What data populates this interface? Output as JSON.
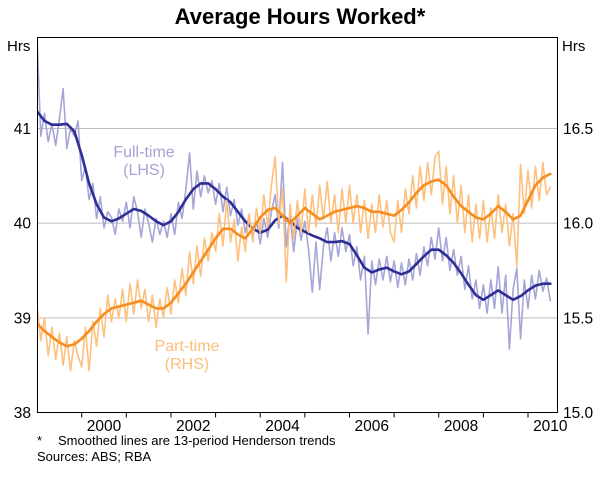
{
  "chart_data": {
    "type": "line",
    "title": "Average Hours Worked*",
    "grid": true,
    "left_axis": {
      "unit": "Hrs",
      "tick_labels": [
        "38",
        "39",
        "40",
        "41"
      ],
      "tick_values": [
        38,
        39,
        40,
        41
      ],
      "range": [
        38,
        41.96
      ]
    },
    "right_axis": {
      "unit": "Hrs",
      "tick_labels": [
        "15.0",
        "15.5",
        "16.0",
        "16.5"
      ],
      "tick_values": [
        15.0,
        15.5,
        16.0,
        16.5
      ],
      "range": [
        15.0,
        16.98
      ]
    },
    "x_axis": {
      "range": [
        1999.0,
        2010.65
      ],
      "tick_years": [
        2000,
        2001,
        2002,
        2003,
        2004,
        2005,
        2006,
        2007,
        2008,
        2009,
        2010
      ],
      "label_years": [
        2000,
        2002,
        2004,
        2006,
        2008,
        2010
      ],
      "labels": [
        "2000",
        "2002",
        "2004",
        "2006",
        "2008",
        "2010"
      ]
    },
    "series_labels": {
      "full_time": {
        "line1": "Full-time",
        "line2": "(LHS)",
        "color": "#a3a3d6"
      },
      "part_time": {
        "line1": "Part-time",
        "line2": "(RHS)",
        "color": "#fdbe7b"
      }
    },
    "series": [
      {
        "name": "full-time-monthly",
        "axis": "left",
        "color": "#a5a5d9",
        "width": 1.6,
        "x_start": 1999.0,
        "x_step": 0.083333,
        "y": [
          41.95,
          40.92,
          41.16,
          40.86,
          41.05,
          40.82,
          41.1,
          41.42,
          40.79,
          41.0,
          40.92,
          41.08,
          40.45,
          40.6,
          40.25,
          40.42,
          40.05,
          40.28,
          39.95,
          40.12,
          40.06,
          39.88,
          40.15,
          40.02,
          40.22,
          39.95,
          40.28,
          40.12,
          39.85,
          40.15,
          40.0,
          39.8,
          40.05,
          39.88,
          40.02,
          39.85,
          40.1,
          39.88,
          40.22,
          40.05,
          40.35,
          40.74,
          40.15,
          40.55,
          40.28,
          40.5,
          40.32,
          40.45,
          40.2,
          40.42,
          40.12,
          40.38,
          40.08,
          40.25,
          39.98,
          40.15,
          39.9,
          40.08,
          39.85,
          40.02,
          39.78,
          40.05,
          39.85,
          40.12,
          40.3,
          39.95,
          40.64,
          39.75,
          40.1,
          39.7,
          40.05,
          39.82,
          40.02,
          39.72,
          39.27,
          39.8,
          39.3,
          39.75,
          39.95,
          39.6,
          39.9,
          39.65,
          39.95,
          39.7,
          39.88,
          39.55,
          39.75,
          39.4,
          39.65,
          38.83,
          39.6,
          39.35,
          39.62,
          39.4,
          39.65,
          39.38,
          39.6,
          39.32,
          39.58,
          39.35,
          39.62,
          39.4,
          39.68,
          39.45,
          39.75,
          39.55,
          39.85,
          39.62,
          39.95,
          39.6,
          39.85,
          39.5,
          39.72,
          39.45,
          39.65,
          39.3,
          39.55,
          39.2,
          39.4,
          39.1,
          39.35,
          39.05,
          39.4,
          39.1,
          39.54,
          39.05,
          39.45,
          38.67,
          39.3,
          39.52,
          38.78,
          39.4,
          39.1,
          39.45,
          39.2,
          39.5,
          39.28,
          39.42,
          39.18
        ]
      },
      {
        "name": "full-time-trend",
        "axis": "left",
        "color": "#2d2f94",
        "width": 2.6,
        "x_start": 1999.0,
        "x_step": 0.166667,
        "y": [
          41.18,
          41.08,
          41.04,
          41.04,
          41.05,
          40.97,
          40.72,
          40.42,
          40.2,
          40.06,
          40.02,
          40.05,
          40.1,
          40.15,
          40.13,
          40.08,
          40.02,
          39.98,
          40.02,
          40.12,
          40.25,
          40.36,
          40.42,
          40.42,
          40.36,
          40.28,
          40.22,
          40.12,
          40.02,
          39.94,
          39.9,
          39.93,
          40.03,
          40.08,
          40.02,
          39.95,
          39.91,
          39.87,
          39.84,
          39.8,
          39.8,
          39.81,
          39.78,
          39.66,
          39.53,
          39.48,
          39.51,
          39.53,
          39.49,
          39.46,
          39.49,
          39.57,
          39.65,
          39.72,
          39.72,
          39.66,
          39.58,
          39.47,
          39.35,
          39.24,
          39.19,
          39.24,
          39.29,
          39.24,
          39.19,
          39.23,
          39.29,
          39.34,
          39.36,
          39.36
        ]
      },
      {
        "name": "part-time-monthly",
        "axis": "right",
        "color": "#fdc07e",
        "width": 1.6,
        "x_start": 1999.0,
        "x_step": 0.083333,
        "y": [
          15.56,
          15.38,
          15.5,
          15.3,
          15.45,
          15.28,
          15.42,
          15.25,
          15.4,
          15.22,
          15.38,
          15.3,
          15.24,
          15.45,
          15.22,
          15.48,
          15.35,
          15.55,
          15.4,
          15.62,
          15.48,
          15.6,
          15.5,
          15.65,
          15.48,
          15.68,
          15.52,
          15.7,
          15.55,
          15.65,
          15.48,
          15.62,
          15.45,
          15.6,
          15.5,
          15.66,
          15.52,
          15.7,
          15.58,
          15.76,
          15.62,
          15.85,
          15.68,
          15.88,
          15.72,
          15.92,
          15.8,
          15.95,
          15.85,
          16.05,
          15.88,
          16.12,
          15.9,
          16.02,
          15.8,
          15.98,
          15.85,
          16.05,
          15.9,
          16.08,
          15.95,
          16.15,
          15.98,
          16.2,
          16.35,
          16.0,
          16.18,
          15.69,
          16.1,
          15.92,
          16.12,
          15.95,
          16.18,
          15.95,
          16.15,
          15.98,
          16.2,
          16.02,
          16.22,
          16.0,
          16.15,
          15.95,
          16.18,
          16.0,
          16.2,
          16.0,
          16.15,
          15.95,
          16.12,
          15.92,
          16.1,
          15.95,
          16.15,
          15.98,
          16.12,
          15.95,
          15.9,
          16.12,
          15.95,
          16.18,
          16.05,
          16.25,
          16.08,
          16.3,
          16.12,
          16.32,
          16.15,
          16.35,
          16.38,
          16.1,
          16.3,
          16.05,
          16.25,
          16.0,
          16.2,
          15.95,
          16.15,
          15.9,
          16.1,
          15.92,
          16.12,
          15.9,
          16.08,
          15.92,
          16.15,
          15.95,
          16.1,
          15.88,
          16.05,
          15.77,
          16.31,
          16.05,
          16.28,
          16.08,
          16.3,
          16.12,
          16.32,
          16.15,
          16.19
        ]
      },
      {
        "name": "part-time-trend",
        "axis": "right",
        "color": "#f68d1e",
        "width": 2.6,
        "x_start": 1999.0,
        "x_step": 0.166667,
        "y": [
          15.47,
          15.43,
          15.4,
          15.37,
          15.35,
          15.36,
          15.39,
          15.43,
          15.48,
          15.52,
          15.55,
          15.56,
          15.57,
          15.58,
          15.59,
          15.57,
          15.55,
          15.55,
          15.58,
          15.63,
          15.68,
          15.74,
          15.8,
          15.86,
          15.92,
          15.97,
          15.97,
          15.94,
          15.92,
          15.97,
          16.03,
          16.07,
          16.08,
          16.04,
          16.0,
          16.04,
          16.08,
          16.05,
          16.02,
          16.04,
          16.06,
          16.07,
          16.08,
          16.09,
          16.08,
          16.06,
          16.06,
          16.05,
          16.04,
          16.07,
          16.11,
          16.16,
          16.2,
          16.22,
          16.23,
          16.2,
          16.14,
          16.09,
          16.06,
          16.03,
          16.02,
          16.05,
          16.09,
          16.06,
          16.02,
          16.04,
          16.12,
          16.2,
          16.24,
          16.26
        ]
      }
    ],
    "colors": {
      "grid": "#bcbcbc",
      "frame": "#000000",
      "text": "#000000"
    }
  },
  "footnote": {
    "marker": "*",
    "text": "Smoothed lines are 13-period Henderson trends",
    "sources": "Sources: ABS; RBA"
  }
}
